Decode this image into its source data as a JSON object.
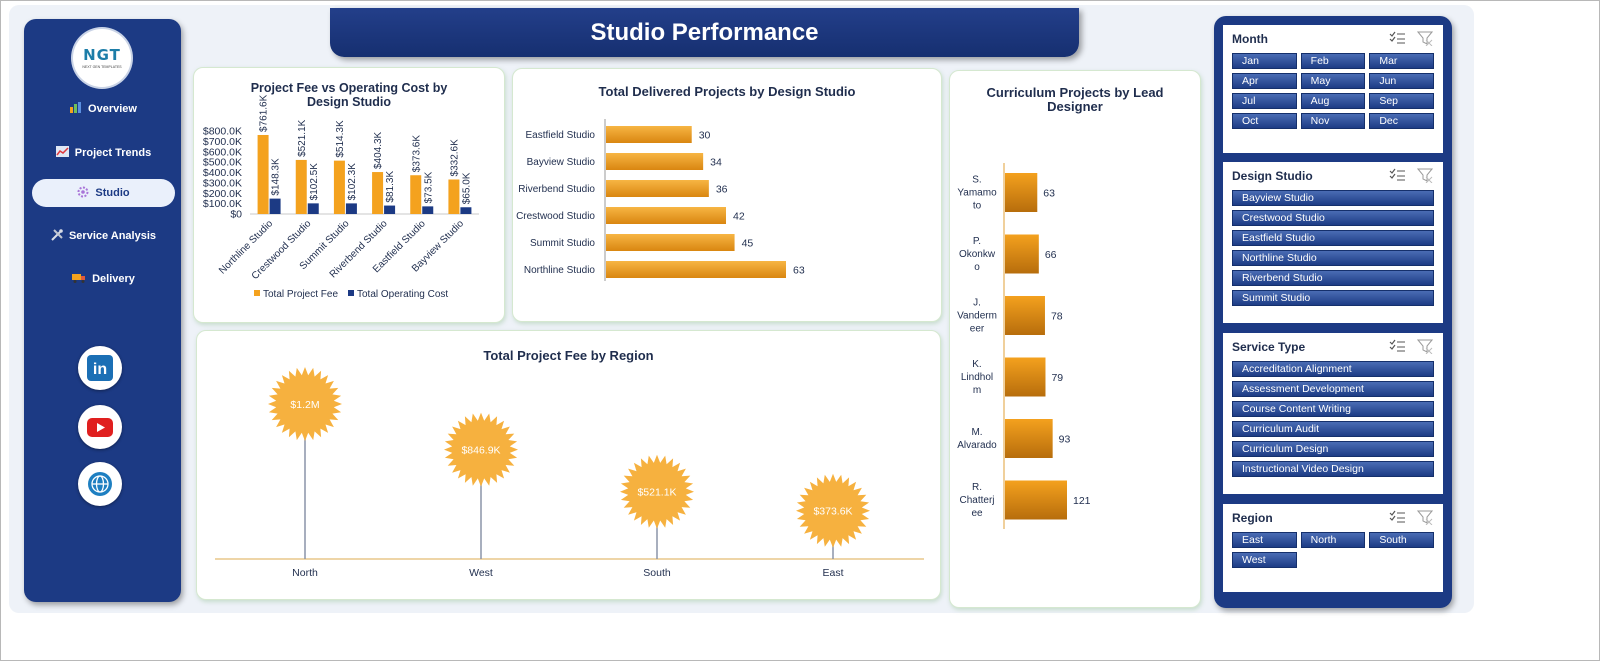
{
  "banner": {
    "title": "Studio Performance"
  },
  "logo": {
    "text": "NGT",
    "subtext": "NEXT GEN TEMPLATES"
  },
  "nav": {
    "items": [
      {
        "label": "Overview",
        "icon": "bar-chart-icon",
        "active": false
      },
      {
        "label": "Project Trends",
        "icon": "trend-chart-icon",
        "active": false
      },
      {
        "label": "Studio",
        "icon": "gear-icon",
        "active": true
      },
      {
        "label": "Service Analysis",
        "icon": "tools-icon",
        "active": false
      },
      {
        "label": "Delivery",
        "icon": "truck-icon",
        "active": false
      }
    ],
    "social": [
      {
        "name": "linkedin-icon",
        "glyph": "in",
        "color": "#1b6fb5"
      },
      {
        "name": "youtube-icon",
        "glyph": "▶",
        "color": "#e01f1f"
      },
      {
        "name": "globe-icon",
        "glyph": "◍",
        "color": "#1e7fc1"
      }
    ]
  },
  "colors": {
    "fee": "#f4a21e",
    "cost": "#1c3a84",
    "bar": "#ee9c1b",
    "sun": "#f6b13f"
  },
  "chart_data": [
    {
      "type": "bar",
      "title": "Project Fee vs Operating Cost by Design Studio",
      "categories": [
        "Northline Studio",
        "Crestwood Studio",
        "Summit Studio",
        "Riverbend Studio",
        "Eastfield Studio",
        "Bayview Studio"
      ],
      "series": [
        {
          "name": "Total Project Fee",
          "values": [
            761.6,
            521.1,
            514.3,
            404.3,
            373.6,
            332.6
          ],
          "labels": [
            "$761.6K",
            "$521.1K",
            "$514.3K",
            "$404.3K",
            "$373.6K",
            "$332.6K"
          ]
        },
        {
          "name": "Total Operating Cost",
          "values": [
            148.3,
            102.5,
            102.3,
            81.3,
            73.5,
            65.0
          ],
          "labels": [
            "$148.3K",
            "$102.5K",
            "$102.3K",
            "$81.3K",
            "$73.5K",
            "$65.0K"
          ]
        }
      ],
      "yticks": [
        "$0",
        "$100.0K",
        "$200.0K",
        "$300.0K",
        "$400.0K",
        "$500.0K",
        "$600.0K",
        "$700.0K",
        "$800.0K"
      ],
      "ylim": [
        0,
        800
      ],
      "legend": "bottom"
    },
    {
      "type": "bar",
      "orientation": "horizontal",
      "title": "Total Delivered Projects by Design Studio",
      "categories": [
        "Eastfield Studio",
        "Bayview Studio",
        "Riverbend Studio",
        "Crestwood Studio",
        "Summit Studio",
        "Northline Studio"
      ],
      "values": [
        30,
        34,
        36,
        42,
        45,
        63
      ],
      "xlim": [
        0,
        70
      ]
    },
    {
      "type": "bar",
      "orientation": "horizontal",
      "title": "Curriculum Projects by Lead Designer",
      "categories": [
        "S. Yamamoto",
        "P. Okonkwo",
        "J. Vandermeer",
        "K. Lindholm",
        "M. Alvarado",
        "R. Chatterjee"
      ],
      "category_lines": [
        [
          "S.",
          "Yamamo",
          "to"
        ],
        [
          "P.",
          "Okonkw",
          "o"
        ],
        [
          "J.",
          "Vanderm",
          "eer"
        ],
        [
          "K.",
          "Lindhol",
          "m"
        ],
        [
          "M.",
          "Alvarado"
        ],
        [
          "R.",
          "Chatterj",
          "ee"
        ]
      ],
      "values": [
        63,
        66,
        78,
        79,
        93,
        121
      ],
      "xlim": [
        0,
        180
      ]
    },
    {
      "type": "scatter",
      "subtype": "lollipop",
      "title": "Total Project Fee by Region",
      "categories": [
        "North",
        "West",
        "South",
        "East"
      ],
      "values": [
        1200,
        846.9,
        521.1,
        373.6
      ],
      "labels": [
        "$1.2M",
        "$846.9K",
        "$521.1K",
        "$373.6K"
      ],
      "ylim": [
        0,
        1400
      ]
    }
  ],
  "slicers": {
    "month": {
      "title": "Month",
      "items": [
        "Jan",
        "Feb",
        "Mar",
        "Apr",
        "May",
        "Jun",
        "Jul",
        "Aug",
        "Sep",
        "Oct",
        "Nov",
        "Dec"
      ]
    },
    "studio": {
      "title": "Design Studio",
      "items": [
        "Bayview Studio",
        "Crestwood Studio",
        "Eastfield Studio",
        "Northline Studio",
        "Riverbend Studio",
        "Summit Studio"
      ]
    },
    "service": {
      "title": "Service Type",
      "items": [
        "Accreditation Alignment",
        "Assessment Development",
        "Course Content Writing",
        "Curriculum Audit",
        "Curriculum Design",
        "Instructional Video Design"
      ]
    },
    "region": {
      "title": "Region",
      "items": [
        "East",
        "North",
        "South",
        "West"
      ]
    }
  }
}
